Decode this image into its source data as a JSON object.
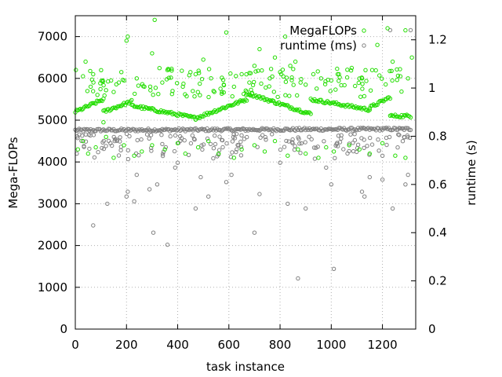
{
  "chart_data": {
    "type": "scatter",
    "xlabel": "task instance",
    "ylabel": "Mega-FLOPs",
    "y2label": "runtime (s)",
    "xlim": [
      0,
      1330
    ],
    "ylim": [
      0,
      7500
    ],
    "y2lim": [
      0,
      1.3
    ],
    "xticks": [
      "0",
      "200",
      "400",
      "600",
      "800",
      "1000",
      "1200"
    ],
    "yticks": [
      "0",
      "1000",
      "2000",
      "3000",
      "4000",
      "5000",
      "6000",
      "7000"
    ],
    "y2ticks": [
      "0",
      "0.2",
      "0.4",
      "0.6",
      "0.8",
      "1",
      "1.2"
    ],
    "grid": true,
    "legend_position": "top-right",
    "legend": [
      {
        "name": "MegaFLOPs",
        "color": "#22dd00"
      },
      {
        "name": "runtime (ms)",
        "color": "#808080"
      }
    ],
    "series": [
      {
        "name": "MegaFLOPs",
        "axis": "left",
        "color": "#22dd00",
        "trend_segments": [
          {
            "x": [
              0,
              110
            ],
            "y": [
              5200,
              5500
            ]
          },
          {
            "x": [
              110,
              220
            ],
            "y": [
              5200,
              5450
            ]
          },
          {
            "x": [
              220,
              470
            ],
            "y": [
              5350,
              5050
            ]
          },
          {
            "x": [
              470,
              670
            ],
            "y": [
              5050,
              5500
            ]
          },
          {
            "x": [
              670,
              920
            ],
            "y": [
              5650,
              5150
            ]
          },
          {
            "x": [
              920,
              1150
            ],
            "y": [
              5500,
              5250
            ]
          },
          {
            "x": [
              1150,
              1230
            ],
            "y": [
              5300,
              5550
            ]
          },
          {
            "x": [
              1230,
              1310
            ],
            "y": [
              5100,
              5100
            ]
          }
        ],
        "outliers": [
          [
            30,
            6050
          ],
          [
            40,
            6400
          ],
          [
            60,
            5800
          ],
          [
            70,
            6100
          ],
          [
            110,
            4950
          ],
          [
            140,
            5950
          ],
          [
            170,
            5900
          ],
          [
            180,
            6150
          ],
          [
            200,
            6900
          ],
          [
            205,
            7000
          ],
          [
            240,
            6000
          ],
          [
            270,
            5800
          ],
          [
            300,
            6600
          ],
          [
            310,
            7400
          ],
          [
            340,
            5900
          ],
          [
            360,
            6200
          ],
          [
            380,
            5700
          ],
          [
            420,
            5800
          ],
          [
            450,
            6150
          ],
          [
            470,
            6100
          ],
          [
            500,
            6450
          ],
          [
            540,
            5700
          ],
          [
            580,
            5850
          ],
          [
            590,
            7100
          ],
          [
            620,
            5800
          ],
          [
            650,
            6100
          ],
          [
            680,
            5900
          ],
          [
            700,
            6300
          ],
          [
            720,
            6700
          ],
          [
            760,
            6000
          ],
          [
            780,
            6500
          ],
          [
            800,
            6150
          ],
          [
            820,
            7000
          ],
          [
            840,
            6300
          ],
          [
            860,
            6400
          ],
          [
            880,
            5900
          ],
          [
            900,
            5850
          ],
          [
            930,
            6100
          ],
          [
            960,
            6000
          ],
          [
            1000,
            5950
          ],
          [
            1030,
            6100
          ],
          [
            1080,
            6250
          ],
          [
            1120,
            6000
          ],
          [
            1160,
            6200
          ],
          [
            1180,
            6800
          ],
          [
            1220,
            7200
          ],
          [
            1240,
            6400
          ],
          [
            1270,
            6050
          ],
          [
            1290,
            7150
          ],
          [
            1300,
            6000
          ],
          [
            1315,
            6500
          ]
        ],
        "scatter_low": [
          [
            10,
            4300
          ],
          [
            30,
            4500
          ],
          [
            50,
            4200
          ],
          [
            80,
            4350
          ],
          [
            120,
            4600
          ],
          [
            150,
            4100
          ],
          [
            190,
            4400
          ],
          [
            230,
            4150
          ],
          [
            260,
            4250
          ],
          [
            300,
            4400
          ],
          [
            350,
            4300
          ],
          [
            400,
            4450
          ],
          [
            430,
            4200
          ],
          [
            480,
            4350
          ],
          [
            520,
            4500
          ],
          [
            560,
            4200
          ],
          [
            620,
            4100
          ],
          [
            650,
            4300
          ],
          [
            700,
            4400
          ],
          [
            740,
            4250
          ],
          [
            780,
            4500
          ],
          [
            830,
            4150
          ],
          [
            870,
            4300
          ],
          [
            900,
            4200
          ],
          [
            950,
            4100
          ],
          [
            980,
            4350
          ],
          [
            1010,
            4250
          ],
          [
            1070,
            4400
          ],
          [
            1110,
            4300
          ],
          [
            1150,
            4200
          ],
          [
            1200,
            4450
          ],
          [
            1250,
            4150
          ],
          [
            1290,
            4100
          ]
        ]
      },
      {
        "name": "runtime (ms)",
        "axis": "right",
        "color": "#808080",
        "main_trend": {
          "x": [
            0,
            1310
          ],
          "y": [
            0.825,
            0.83
          ]
        },
        "scatter_band": {
          "x": [
            0,
            1310
          ],
          "y_min": 0.7,
          "y_max": 0.81
        },
        "outliers": [
          [
            70,
            0.43
          ],
          [
            125,
            0.52
          ],
          [
            170,
            0.72
          ],
          [
            200,
            0.55
          ],
          [
            205,
            0.57
          ],
          [
            230,
            0.53
          ],
          [
            240,
            0.64
          ],
          [
            290,
            0.58
          ],
          [
            305,
            0.4
          ],
          [
            320,
            0.6
          ],
          [
            360,
            0.35
          ],
          [
            390,
            0.67
          ],
          [
            400,
            0.69
          ],
          [
            470,
            0.5
          ],
          [
            490,
            0.63
          ],
          [
            520,
            0.55
          ],
          [
            590,
            0.61
          ],
          [
            610,
            0.64
          ],
          [
            700,
            0.4
          ],
          [
            720,
            0.56
          ],
          [
            800,
            0.69
          ],
          [
            830,
            0.52
          ],
          [
            870,
            0.21
          ],
          [
            900,
            0.5
          ],
          [
            980,
            0.67
          ],
          [
            1000,
            0.6
          ],
          [
            1010,
            0.25
          ],
          [
            1120,
            0.57
          ],
          [
            1130,
            0.55
          ],
          [
            1150,
            0.63
          ],
          [
            1200,
            0.62
          ],
          [
            1230,
            1.24
          ],
          [
            1240,
            0.5
          ],
          [
            1290,
            0.6
          ],
          [
            1300,
            0.64
          ],
          [
            1310,
            1.24
          ]
        ]
      }
    ]
  }
}
